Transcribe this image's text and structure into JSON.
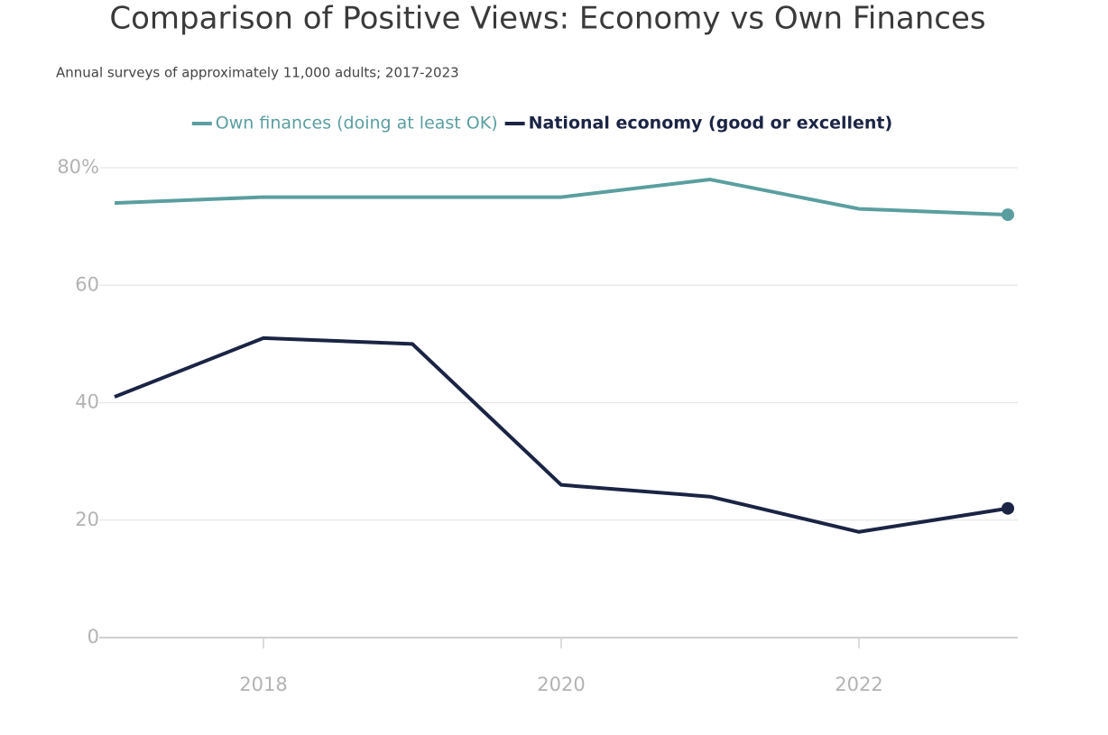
{
  "chart_data": {
    "type": "line",
    "title": "Comparison of Positive Views: Economy vs Own Finances",
    "subtitle": "Annual surveys of approximately 11,000 adults; 2017-2023",
    "x": [
      2017,
      2018,
      2019,
      2020,
      2021,
      2022,
      2023
    ],
    "series": [
      {
        "name": "Own finances (doing at least OK)",
        "color": "#5b9ea0",
        "values": [
          74,
          75,
          75,
          75,
          78,
          73,
          72
        ]
      },
      {
        "name": "National economy (good or excellent)",
        "color": "#1b2444",
        "values": [
          41,
          51,
          50,
          26,
          24,
          18,
          22
        ]
      }
    ],
    "xlim": [
      2017,
      2023
    ],
    "xticks": [
      2018,
      2020,
      2022
    ],
    "ylim": [
      0,
      80
    ],
    "yticks": [
      0,
      20,
      40,
      60,
      {
        "value": 80,
        "label": "80%"
      }
    ],
    "grid": true,
    "legend": "top",
    "end_markers": true
  }
}
